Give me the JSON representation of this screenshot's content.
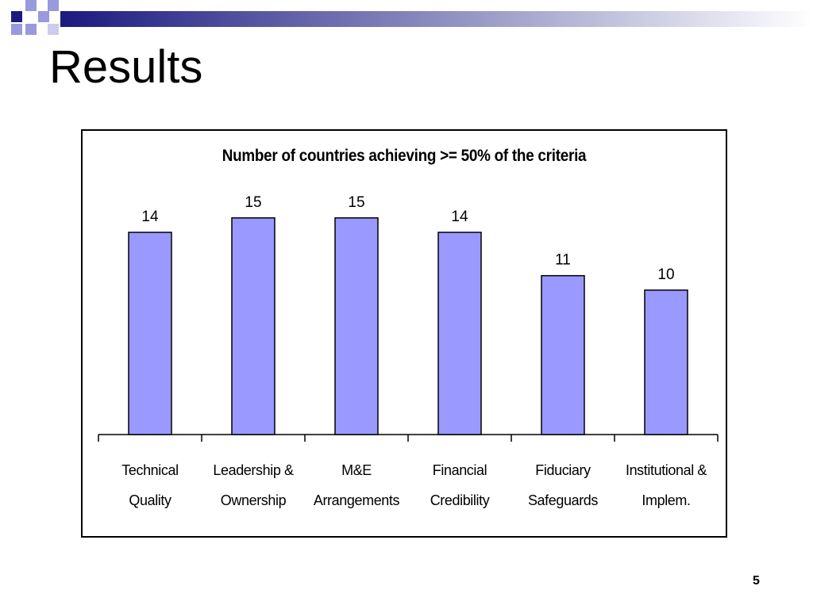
{
  "slide": {
    "title": "Results",
    "page_number": "5"
  },
  "colors": {
    "bar_fill": "#9999ff",
    "bar_stroke": "#000000",
    "decoration_dark": "#1a1a80",
    "decoration_light": "#9999dd"
  },
  "chart_data": {
    "type": "bar",
    "title": "Number of countries achieving >= 50% of the criteria",
    "categories": [
      [
        "Technical",
        "Quality"
      ],
      [
        "Leadership &",
        "Ownership"
      ],
      [
        "M&E",
        "Arrangements"
      ],
      [
        "Financial",
        "Credibility"
      ],
      [
        "Fiduciary",
        "Safeguards"
      ],
      [
        "Institutional &",
        "Implem."
      ]
    ],
    "values": [
      14,
      15,
      15,
      14,
      11,
      10
    ],
    "data_labels": [
      "14",
      "15",
      "15",
      "14",
      "11",
      "10"
    ],
    "ylim": [
      0,
      14
    ],
    "xlabel": "",
    "ylabel": "",
    "grid": false,
    "legend": "none"
  }
}
